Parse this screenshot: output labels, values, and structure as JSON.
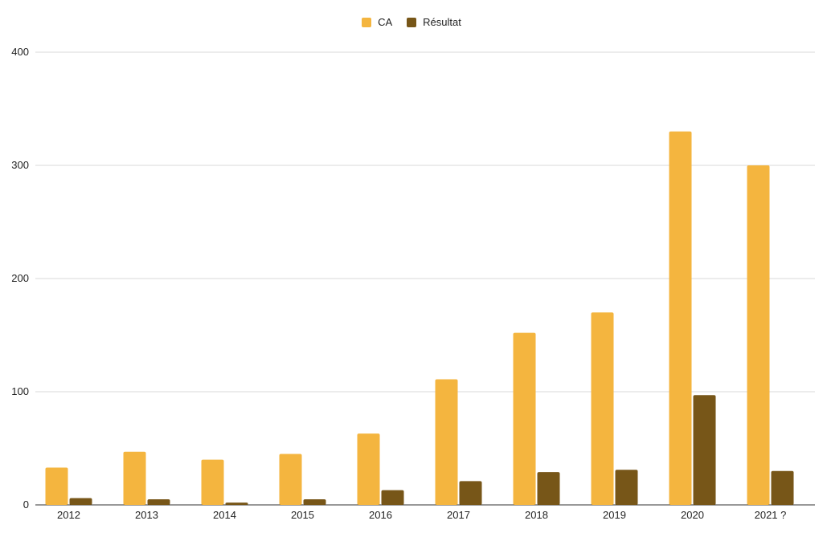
{
  "chart_data": {
    "type": "bar",
    "categories": [
      "2012",
      "2013",
      "2014",
      "2015",
      "2016",
      "2017",
      "2018",
      "2019",
      "2020",
      "2021 ?"
    ],
    "series": [
      {
        "name": "CA",
        "color": "#f4b53f",
        "values": [
          33,
          47,
          40,
          45,
          63,
          111,
          152,
          170,
          330,
          300
        ]
      },
      {
        "name": "Résultat",
        "color": "#775618",
        "values": [
          6,
          5,
          2,
          5,
          13,
          21,
          29,
          31,
          97,
          30
        ]
      }
    ],
    "yticks": [
      "0",
      "100",
      "200",
      "300",
      "400"
    ],
    "ylim": [
      0,
      400
    ],
    "grid": true,
    "legend_position": "top-center"
  }
}
